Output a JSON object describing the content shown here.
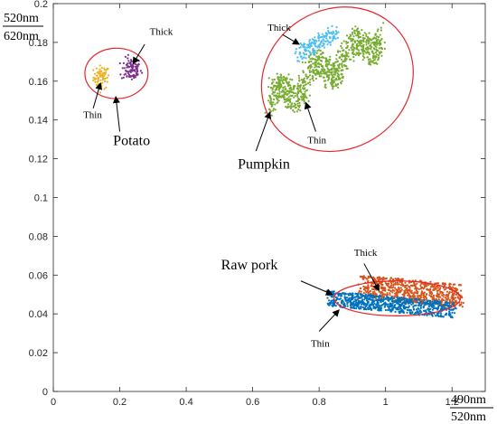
{
  "chart_data": {
    "type": "scatter",
    "title": "",
    "xlabel": {
      "numerator": "490nm",
      "denominator": "520nm"
    },
    "ylabel": {
      "numerator": "520nm",
      "denominator": "620nm"
    },
    "xlim": [
      0,
      1.3
    ],
    "ylim": [
      0,
      0.2
    ],
    "xticks": [
      "0",
      "0.2",
      "0.4",
      "0.6",
      "0.8",
      "1",
      "1.2"
    ],
    "yticks": [
      "0",
      "0.02",
      "0.04",
      "0.06",
      "0.08",
      "0.1",
      "0.12",
      "0.14",
      "0.16",
      "0.18",
      "0.2"
    ],
    "grid": false,
    "series": [
      {
        "name": "Potato Thin",
        "color": "#EDB120",
        "center": [
          0.145,
          0.162
        ],
        "spread": [
          0.012,
          0.003
        ],
        "count": 70
      },
      {
        "name": "Potato Thick",
        "color": "#7E2F8E",
        "center": [
          0.235,
          0.166
        ],
        "spread": [
          0.015,
          0.003
        ],
        "count": 90
      },
      {
        "name": "Pumpkin Thin",
        "color": "#77AC30",
        "band": {
          "from": [
            0.65,
            0.148
          ],
          "to": [
            0.99,
            0.184
          ],
          "wave_amplitude": 0.006,
          "width": 0.007
        },
        "count": 900
      },
      {
        "name": "Pumpkin Thick",
        "color": "#4DBEEE",
        "band": {
          "from": [
            0.74,
            0.174
          ],
          "to": [
            0.85,
            0.185
          ],
          "wave_amplitude": 0.0,
          "width": 0.004
        },
        "count": 160
      },
      {
        "name": "Raw pork Thick",
        "color": "#D95319",
        "band": {
          "from": [
            0.93,
            0.054
          ],
          "to": [
            1.23,
            0.049
          ],
          "wave_amplitude": 0.0,
          "width": 0.006
        },
        "count": 700
      },
      {
        "name": "Raw pork Thin",
        "color": "#0072BD",
        "band": {
          "from": [
            0.83,
            0.048
          ],
          "to": [
            1.2,
            0.042
          ],
          "wave_amplitude": 0.0,
          "width": 0.004
        },
        "count": 800
      }
    ],
    "ellipses": [
      {
        "name": "Potato",
        "center": [
          0.19,
          0.164
        ],
        "rx": 0.095,
        "ry": 0.013,
        "angle": 0,
        "color": "#E8262B"
      },
      {
        "name": "Pumpkin",
        "center": [
          0.855,
          0.161
        ],
        "rx": 0.235,
        "ry": 0.036,
        "angle": 32,
        "color": "#E8262B"
      },
      {
        "name": "Raw pork",
        "center": [
          1.035,
          0.048
        ],
        "rx": 0.19,
        "ry": 0.009,
        "angle": 0,
        "color": "#E8262B"
      }
    ],
    "annotations": [
      {
        "id": "potato-label",
        "text": "Potato",
        "size": "big",
        "at": [
          0.18,
          0.127
        ]
      },
      {
        "id": "potato-thick",
        "text": "Thick",
        "size": "small",
        "at": [
          0.29,
          0.184
        ],
        "arrow_from": [
          0.275,
          0.179
        ],
        "arrow_to": [
          0.24,
          0.169
        ]
      },
      {
        "id": "potato-thin",
        "text": "Thin",
        "size": "small",
        "at": [
          0.09,
          0.141
        ],
        "arrow_from": [
          0.12,
          0.146
        ],
        "arrow_to": [
          0.142,
          0.159
        ]
      },
      {
        "id": "potato-arrow",
        "text": "",
        "size": "small",
        "at": [
          0.2,
          0.132
        ],
        "arrow_from": [
          0.2,
          0.134
        ],
        "arrow_to": [
          0.188,
          0.152
        ]
      },
      {
        "id": "pumpkin-label",
        "text": "Pumpkin",
        "size": "big",
        "at": [
          0.555,
          0.115
        ]
      },
      {
        "id": "pumpkin-thick",
        "text": "Thick",
        "size": "small",
        "at": [
          0.645,
          0.186
        ],
        "arrow_from": [
          0.69,
          0.184
        ],
        "arrow_to": [
          0.74,
          0.179
        ]
      },
      {
        "id": "pumpkin-thin",
        "text": "Thin",
        "size": "small",
        "at": [
          0.765,
          0.128
        ],
        "arrow_from": [
          0.79,
          0.134
        ],
        "arrow_to": [
          0.76,
          0.149
        ]
      },
      {
        "id": "pumpkin-arrow",
        "text": "",
        "size": "small",
        "at": [
          0.6,
          0.122
        ],
        "arrow_from": [
          0.61,
          0.124
        ],
        "arrow_to": [
          0.652,
          0.144
        ]
      },
      {
        "id": "pork-label",
        "text": "Raw pork",
        "size": "big",
        "at": [
          0.505,
          0.063
        ]
      },
      {
        "id": "pork-thick",
        "text": "Thick",
        "size": "small",
        "at": [
          0.905,
          0.07
        ],
        "arrow_from": [
          0.935,
          0.066
        ],
        "arrow_to": [
          0.98,
          0.052
        ]
      },
      {
        "id": "pork-thin",
        "text": "Thin",
        "size": "small",
        "at": [
          0.775,
          0.023
        ],
        "arrow_from": [
          0.8,
          0.031
        ],
        "arrow_to": [
          0.86,
          0.042
        ]
      },
      {
        "id": "pork-arrow",
        "text": "",
        "size": "small",
        "at": [
          0.75,
          0.056
        ],
        "arrow_from": [
          0.745,
          0.057
        ],
        "arrow_to": [
          0.84,
          0.05
        ]
      }
    ]
  }
}
